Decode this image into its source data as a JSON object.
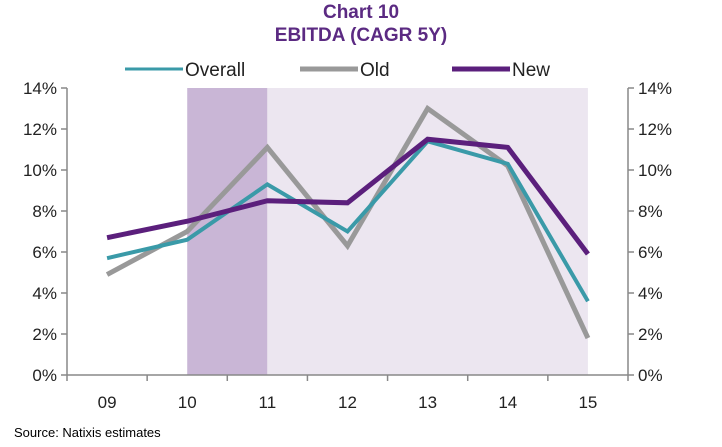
{
  "chart_data": {
    "type": "line",
    "title": "Chart 10",
    "subtitle": "EBITDA (CAGR 5Y)",
    "categories": [
      "09",
      "10",
      "11",
      "12",
      "13",
      "14",
      "15"
    ],
    "series": [
      {
        "name": "Overall",
        "color": "#3a9aa8",
        "values": [
          5.7,
          6.6,
          9.3,
          7.0,
          11.4,
          10.3,
          3.6
        ]
      },
      {
        "name": "Old",
        "color": "#999999",
        "values": [
          4.9,
          7.0,
          11.1,
          6.3,
          13.0,
          10.2,
          1.8
        ]
      },
      {
        "name": "New",
        "color": "#5b1f7c",
        "values": [
          6.7,
          7.5,
          8.5,
          8.4,
          11.5,
          11.1,
          5.9
        ]
      }
    ],
    "ylim": [
      0,
      14
    ],
    "yticks": [
      0,
      2,
      4,
      6,
      8,
      10,
      12,
      14
    ],
    "ytick_format": "%",
    "secondary_y_axis": true,
    "shaded_regions": [
      {
        "from": "10",
        "to": "11",
        "color": "#c9b6d6"
      },
      {
        "from": "11",
        "to": "15",
        "color": "#ece6f0"
      }
    ],
    "grid": false,
    "legend": "top",
    "source": "Source: Natixis estimates"
  }
}
